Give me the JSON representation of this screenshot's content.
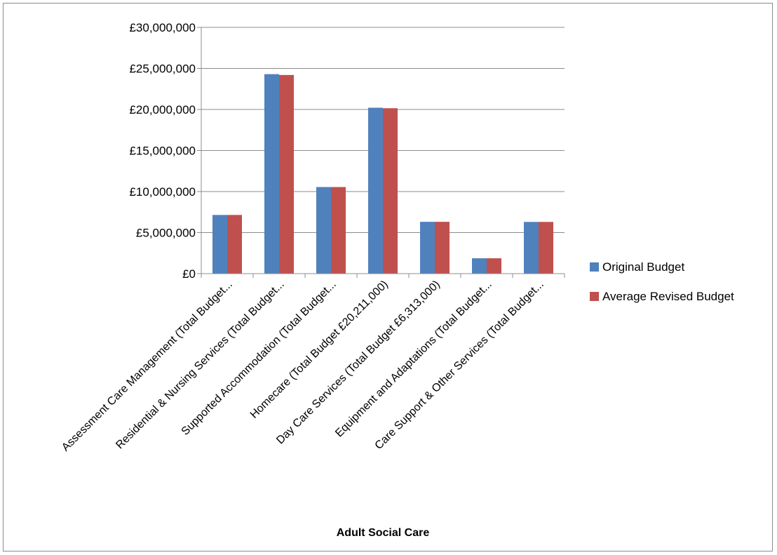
{
  "chart_data": {
    "type": "bar",
    "title": "",
    "xlabel": "Adult Social Care",
    "ylabel": "",
    "ylim": [
      0,
      30000000
    ],
    "yticks": [
      0,
      5000000,
      10000000,
      15000000,
      20000000,
      25000000,
      30000000
    ],
    "ytick_labels": [
      "£0",
      "£5,000,000",
      "£10,000,000",
      "£15,000,000",
      "£20,000,000",
      "£25,000,000",
      "£30,000,000"
    ],
    "grid": true,
    "legend_position": "right",
    "categories": [
      "Assessment Care Management (Total Budget...",
      "Residential & Nursing Services (Total Budget...",
      "Supported Accommodation (Total Budget...",
      "Homecare (Total Budget £20,211,000)",
      "Day Care Services (Total Budget £6,313,000)",
      "Equipment and Adaptations (Total Budget...",
      "Care Support & Other Services (Total Budget..."
    ],
    "series": [
      {
        "name": "Original Budget",
        "color": "#4F81BD",
        "values": [
          7150000,
          24300000,
          10550000,
          20211000,
          6313000,
          1870000,
          6300000
        ]
      },
      {
        "name": "Average Revised Budget",
        "color": "#C0504D",
        "values": [
          7150000,
          24200000,
          10550000,
          20150000,
          6313000,
          1870000,
          6300000
        ]
      }
    ]
  }
}
